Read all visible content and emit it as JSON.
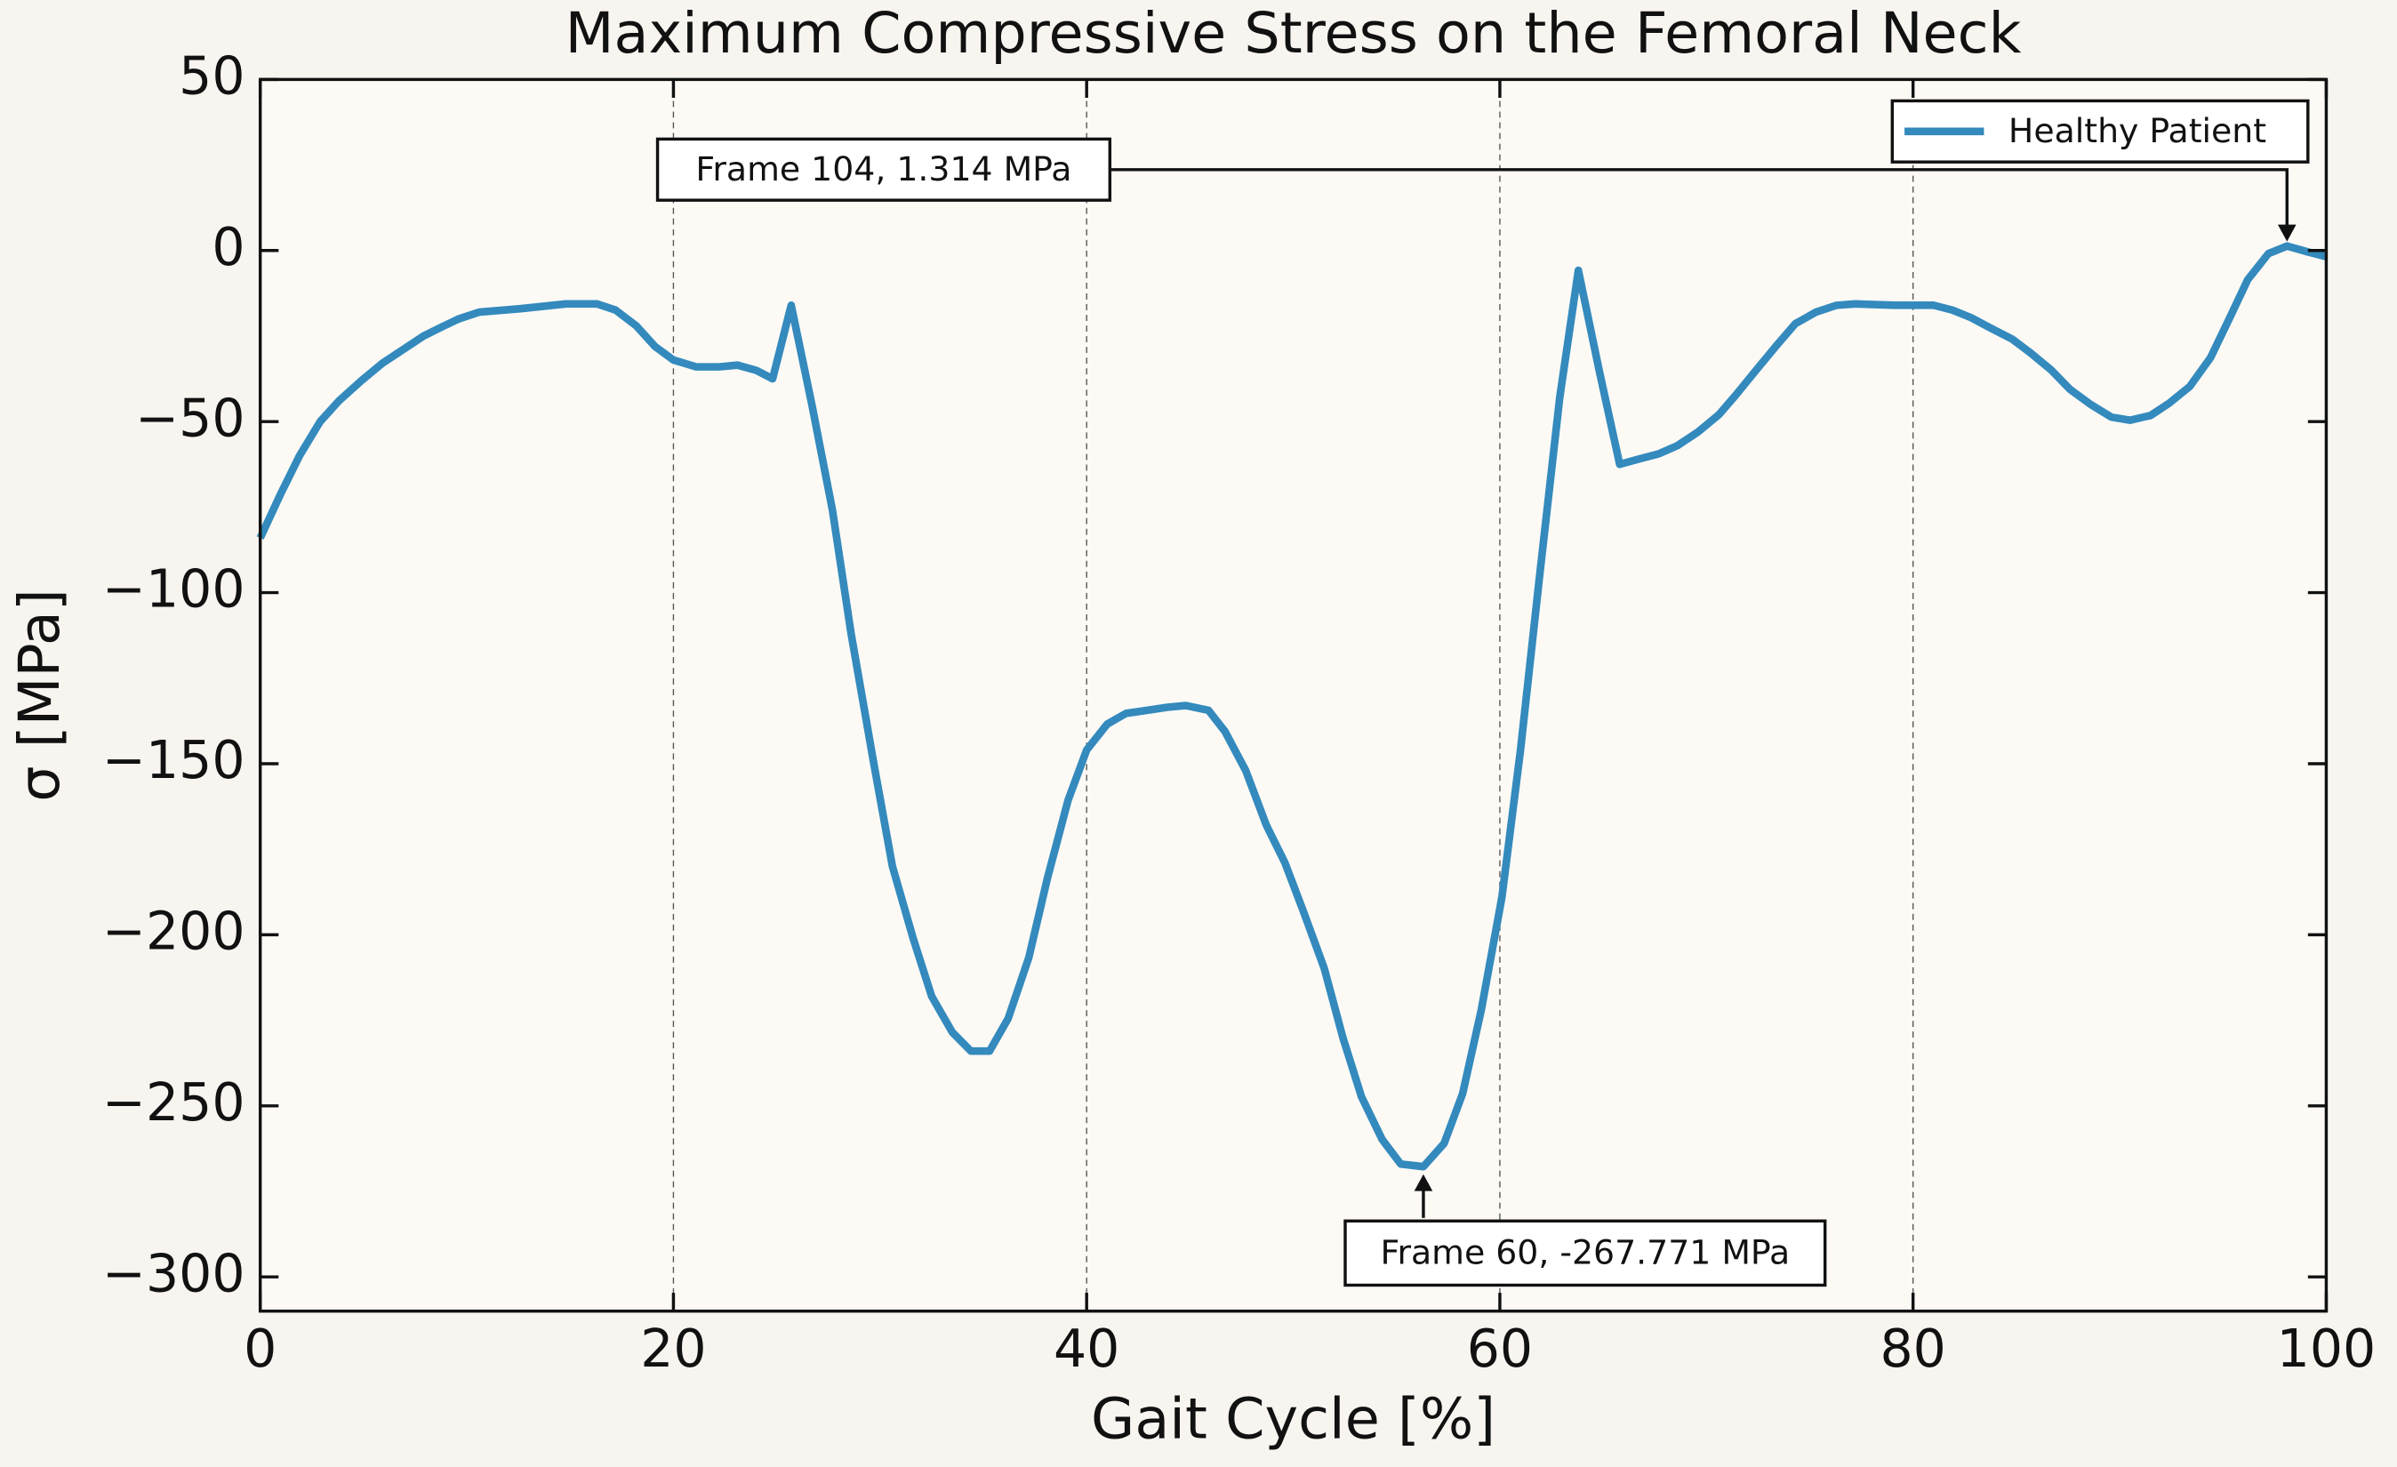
{
  "chart_data": {
    "type": "line",
    "title": "Maximum Compressive Stress on the Femoral Neck",
    "xlabel": "Gait Cycle [%]",
    "ylabel": "σ [MPa]",
    "xlim": [
      0,
      100
    ],
    "ylim": [
      -310,
      50
    ],
    "xticks": [
      0,
      20,
      40,
      60,
      80,
      100
    ],
    "yticks": [
      {
        "value": -300,
        "label": "−300"
      },
      {
        "value": -250,
        "label": "−250"
      },
      {
        "value": -200,
        "label": "−200"
      },
      {
        "value": -150,
        "label": "−150"
      },
      {
        "value": -100,
        "label": "−100"
      },
      {
        "value": -50,
        "label": "−50"
      },
      0,
      50
    ],
    "grid": "x",
    "legend": "upper right",
    "x": [
      0,
      1,
      1.9,
      2.9,
      3.8,
      4.9,
      5.9,
      6.9,
      7.9,
      8.9,
      9.6,
      10.6,
      12.6,
      14.8,
      16.3,
      17.2,
      18.2,
      19.1,
      20,
      21.1,
      22.2,
      23.1,
      24,
      24.8,
      25.7,
      26.7,
      27.7,
      28.6,
      29.7,
      30.6,
      31.6,
      32.5,
      33.5,
      34.4,
      35.3,
      36.2,
      37.2,
      38.1,
      39.1,
      40,
      41,
      41.9,
      42.9,
      43.9,
      44.8,
      45.9,
      46.7,
      47.7,
      48.7,
      49.6,
      50.5,
      51.5,
      52.4,
      53.3,
      54.3,
      55.2,
      56.3,
      57.3,
      58.2,
      59.1,
      60.1,
      61,
      61.9,
      62.9,
      63.8,
      64.8,
      65.8,
      66.7,
      67.7,
      68.6,
      69.6,
      70.6,
      71.4,
      72.4,
      73.4,
      74.3,
      75.3,
      76.3,
      77.2,
      79.1,
      81,
      81.9,
      82.8,
      83.8,
      84.8,
      85.7,
      86.7,
      87.6,
      88.6,
      89.6,
      90.5,
      91.5,
      92.4,
      93.4,
      94.4,
      95.3,
      96.2,
      97.2,
      98.1,
      99.1,
      100
    ],
    "series": [
      {
        "name": "Healthy Patient",
        "color": "#348abd",
        "values": [
          -84,
          -71,
          -60,
          -50,
          -44,
          -38,
          -33,
          -29,
          -25,
          -22,
          -20,
          -18,
          -17,
          -15.6,
          -15.6,
          -17.4,
          -22,
          -28,
          -32,
          -34,
          -34,
          -33.5,
          -35,
          -37.5,
          -16,
          -45,
          -76,
          -112,
          -150,
          -180,
          -201,
          -218,
          -228.5,
          -234,
          -234,
          -224.5,
          -206.7,
          -183.5,
          -160.7,
          -146,
          -138.4,
          -135.3,
          -134.4,
          -133.5,
          -133,
          -134.4,
          -140.6,
          -152,
          -168,
          -179,
          -193.3,
          -209.8,
          -230,
          -247.3,
          -259.8,
          -267,
          -267.771,
          -261,
          -246.4,
          -222,
          -189,
          -146,
          -96.4,
          -42.9,
          -5.8,
          -34.8,
          -62.5,
          -61,
          -59.4,
          -57,
          -53,
          -48,
          -42.4,
          -35,
          -27.7,
          -21.4,
          -18,
          -16,
          -15.6,
          -16,
          -16,
          -17.4,
          -19.6,
          -22.8,
          -25.9,
          -30,
          -35,
          -40.6,
          -45,
          -48.7,
          -49.6,
          -48.2,
          -44.6,
          -39.7,
          -31.3,
          -20,
          -8.5,
          -0.9,
          1.314,
          -0.4,
          -1.8
        ]
      }
    ],
    "annotations": [
      {
        "text": "Frame 104, 1.314 MPa",
        "x": 98.1,
        "y": 1.314
      },
      {
        "text": "Frame 60, -267.771 MPa",
        "x": 56.3,
        "y": -267.771
      }
    ]
  }
}
